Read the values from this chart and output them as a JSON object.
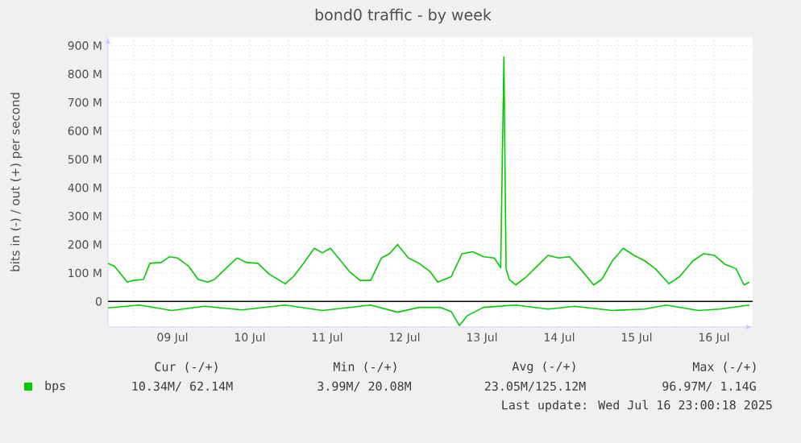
{
  "chart_data": {
    "type": "line",
    "title": "bond0 traffic - by week",
    "ylabel": "bits in (-) / out (+) per second",
    "xlim": [
      "2025-07-08T16:00",
      "2025-07-17T00:00"
    ],
    "ylim": [
      -90,
      930
    ],
    "xticks": [
      {
        "value": "2025-07-09T00:00",
        "label": null
      },
      {
        "value": "2025-07-09T12:00",
        "label": "09 Jul"
      },
      {
        "value": "2025-07-10T00:00",
        "label": null
      },
      {
        "value": "2025-07-10T12:00",
        "label": "10 Jul"
      },
      {
        "value": "2025-07-11T00:00",
        "label": null
      },
      {
        "value": "2025-07-11T12:00",
        "label": "11 Jul"
      },
      {
        "value": "2025-07-12T00:00",
        "label": null
      },
      {
        "value": "2025-07-12T12:00",
        "label": "12 Jul"
      },
      {
        "value": "2025-07-13T00:00",
        "label": null
      },
      {
        "value": "2025-07-13T12:00",
        "label": "13 Jul"
      },
      {
        "value": "2025-07-14T00:00",
        "label": null
      },
      {
        "value": "2025-07-14T12:00",
        "label": "14 Jul"
      },
      {
        "value": "2025-07-15T00:00",
        "label": null
      },
      {
        "value": "2025-07-15T12:00",
        "label": "15 Jul"
      },
      {
        "value": "2025-07-16T00:00",
        "label": null
      },
      {
        "value": "2025-07-16T12:00",
        "label": "16 Jul"
      }
    ],
    "yticks": [
      0,
      {
        "value": 100,
        "label": "100 M"
      },
      {
        "value": 200,
        "label": "200 M"
      },
      {
        "value": 300,
        "label": "300 M"
      },
      {
        "value": 400,
        "label": "400 M"
      },
      {
        "value": 500,
        "label": "500 M"
      },
      {
        "value": 600,
        "label": "600 M"
      },
      {
        "value": 700,
        "label": "700 M"
      },
      {
        "value": 800,
        "label": "800 M"
      },
      {
        "value": 900,
        "label": "900 M"
      }
    ],
    "grid": true,
    "legend": "bottom",
    "ref_lines": [
      {
        "axis": "y",
        "value": 0,
        "color": "#000000"
      }
    ],
    "series": [
      {
        "name": "bps",
        "color": "#00cc00",
        "x": [
          "2025-07-08T16:00",
          "2025-07-08T18:00",
          "2025-07-08T22:00",
          "2025-07-09T00:00",
          "2025-07-09T03:00",
          "2025-07-09T05:00",
          "2025-07-09T08:30",
          "2025-07-09T11:00",
          "2025-07-09T13:30",
          "2025-07-09T17:00",
          "2025-07-09T20:00",
          "2025-07-09T23:00",
          "2025-07-10T01:00",
          "2025-07-10T04:30",
          "2025-07-10T08:00",
          "2025-07-10T11:00",
          "2025-07-10T14:30",
          "2025-07-10T18:00",
          "2025-07-10T23:00",
          "2025-07-11T01:30",
          "2025-07-11T04:40",
          "2025-07-11T08:00",
          "2025-07-11T10:30",
          "2025-07-11T13:00",
          "2025-07-11T15:30",
          "2025-07-11T18:50",
          "2025-07-11T22:10",
          "2025-07-12T01:30",
          "2025-07-12T04:50",
          "2025-07-12T07:20",
          "2025-07-12T09:50",
          "2025-07-12T13:10",
          "2025-07-12T16:30",
          "2025-07-12T19:50",
          "2025-07-12T22:20",
          "2025-07-13T02:30",
          "2025-07-13T05:50",
          "2025-07-13T09:10",
          "2025-07-13T12:30",
          "2025-07-13T15:50",
          "2025-07-13T17:50",
          "2025-07-13T18:50",
          "2025-07-13T19:30",
          "2025-07-13T20:30",
          "2025-07-13T22:30",
          "2025-07-14T01:50",
          "2025-07-14T05:10",
          "2025-07-14T08:30",
          "2025-07-14T11:50",
          "2025-07-14T15:10",
          "2025-07-14T18:30",
          "2025-07-14T22:40",
          "2025-07-15T01:10",
          "2025-07-15T04:30",
          "2025-07-15T07:50",
          "2025-07-15T11:10",
          "2025-07-15T14:30",
          "2025-07-15T17:50",
          "2025-07-15T22:00",
          "2025-07-16T01:20",
          "2025-07-16T05:30",
          "2025-07-16T08:50",
          "2025-07-16T12:10",
          "2025-07-16T15:30",
          "2025-07-16T18:50",
          "2025-07-16T21:20",
          "2025-07-16T23:00"
        ],
        "values": [
          134,
          124,
          68,
          74,
          77,
          134,
          137,
          157,
          153,
          124,
          77,
          68,
          77,
          115,
          153,
          137,
          134,
          96,
          62,
          87,
          134,
          187,
          171,
          187,
          153,
          106,
          74,
          74,
          153,
          168,
          200,
          153,
          134,
          106,
          68,
          87,
          168,
          175,
          157,
          153,
          119,
          860,
          115,
          77,
          58,
          87,
          124,
          162,
          153,
          157,
          115,
          58,
          77,
          143,
          187,
          162,
          143,
          115,
          62,
          87,
          143,
          168,
          162,
          130,
          115,
          58,
          68
        ]
      },
      {
        "color": "#00cc00",
        "x": [
          "2025-07-08T16:00",
          "2025-07-09T01:50",
          "2025-07-09T11:50",
          "2025-07-09T21:50",
          "2025-07-10T09:30",
          "2025-07-10T23:00",
          "2025-07-11T10:30",
          "2025-07-12T01:30",
          "2025-07-12T09:50",
          "2025-07-12T16:30",
          "2025-07-12T23:00",
          "2025-07-13T02:30",
          "2025-07-13T05:00",
          "2025-07-13T07:30",
          "2025-07-13T12:30",
          "2025-07-13T22:30",
          "2025-07-14T08:30",
          "2025-07-14T16:50",
          "2025-07-15T04:30",
          "2025-07-15T14:30",
          "2025-07-15T21:10",
          "2025-07-16T07:10",
          "2025-07-16T13:50",
          "2025-07-16T23:00"
        ],
        "values": [
          -23,
          -13,
          -32,
          -17,
          -30,
          -13,
          -32,
          -13,
          -38,
          -21,
          -21,
          -36,
          -85,
          -50,
          -21,
          -13,
          -27,
          -17,
          -32,
          -27,
          -13,
          -32,
          -27,
          -13
        ]
      }
    ],
    "annotations": [
      "Cur (-/+)",
      "Min (-/+)",
      "Avg (-/+)",
      "Max (-/+)",
      "10.34M/  62.14M",
      "3.99M/  20.08M",
      "23.05M/125.12M",
      "96.97M/   1.14G",
      "Last update: Wed Jul 16 23:00:18 2025"
    ]
  }
}
